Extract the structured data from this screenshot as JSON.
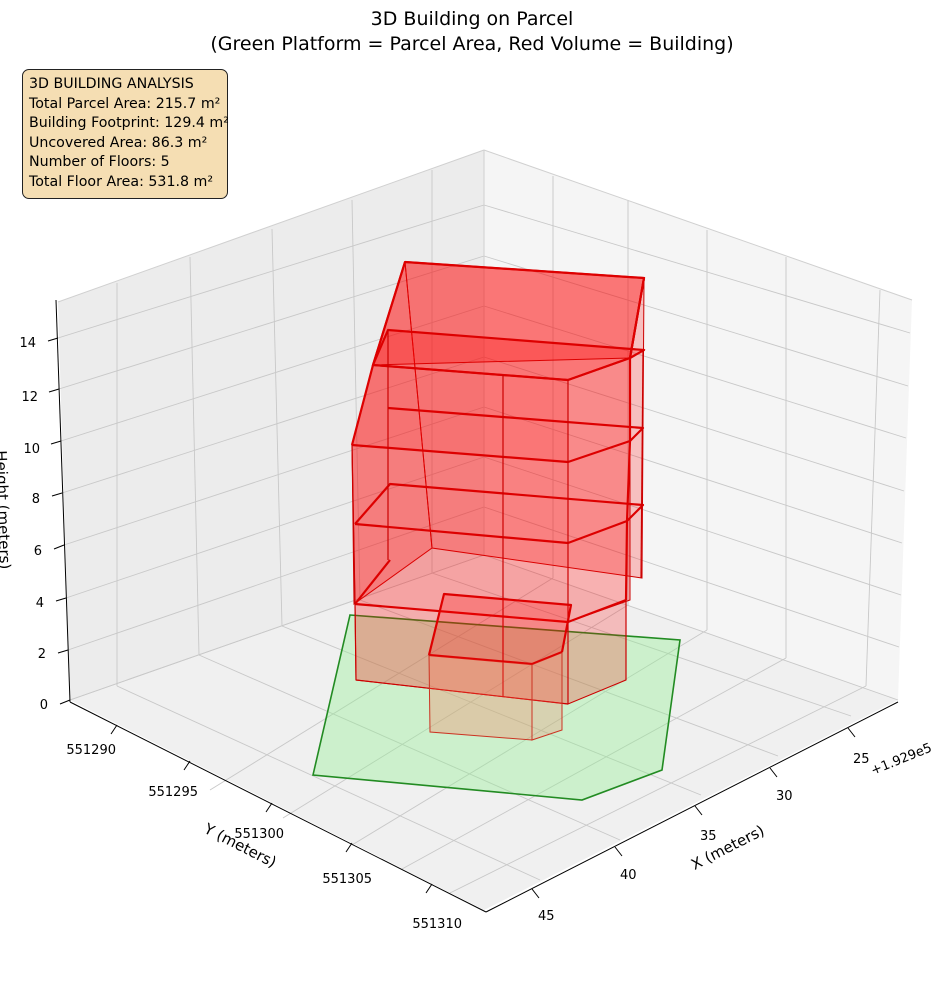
{
  "chart_data": {
    "type": "3d-polygon",
    "title": "3D Building on Parcel",
    "subtitle": "(Green Platform = Parcel Area, Red Volume = Building)",
    "xlabel": "X (meters)",
    "ylabel": "Y (meters)",
    "zlabel": "Height (meters)",
    "x_offset_label": "+1.929e5",
    "x_ticks": [
      "25",
      "30",
      "35",
      "40",
      "45"
    ],
    "y_ticks": [
      "551290",
      "551295",
      "551300",
      "551305",
      "551310"
    ],
    "z_ticks": [
      "0",
      "2",
      "4",
      "6",
      "8",
      "10",
      "12",
      "14"
    ],
    "colors": {
      "parcel_fill": "#90ee90",
      "parcel_edge": "#228b22",
      "building_fill": "#ff0000",
      "building_edge": "#dd0000",
      "box": "#f5deb3"
    },
    "info": {
      "heading": "3D BUILDING ANALYSIS",
      "lines": [
        "Total Parcel Area: 215.7 m²",
        "Building Footprint: 129.4 m²",
        "Uncovered Area: 86.3 m²",
        "Number of Floors: 5",
        "Total Floor Area: 531.8 m²"
      ]
    }
  }
}
